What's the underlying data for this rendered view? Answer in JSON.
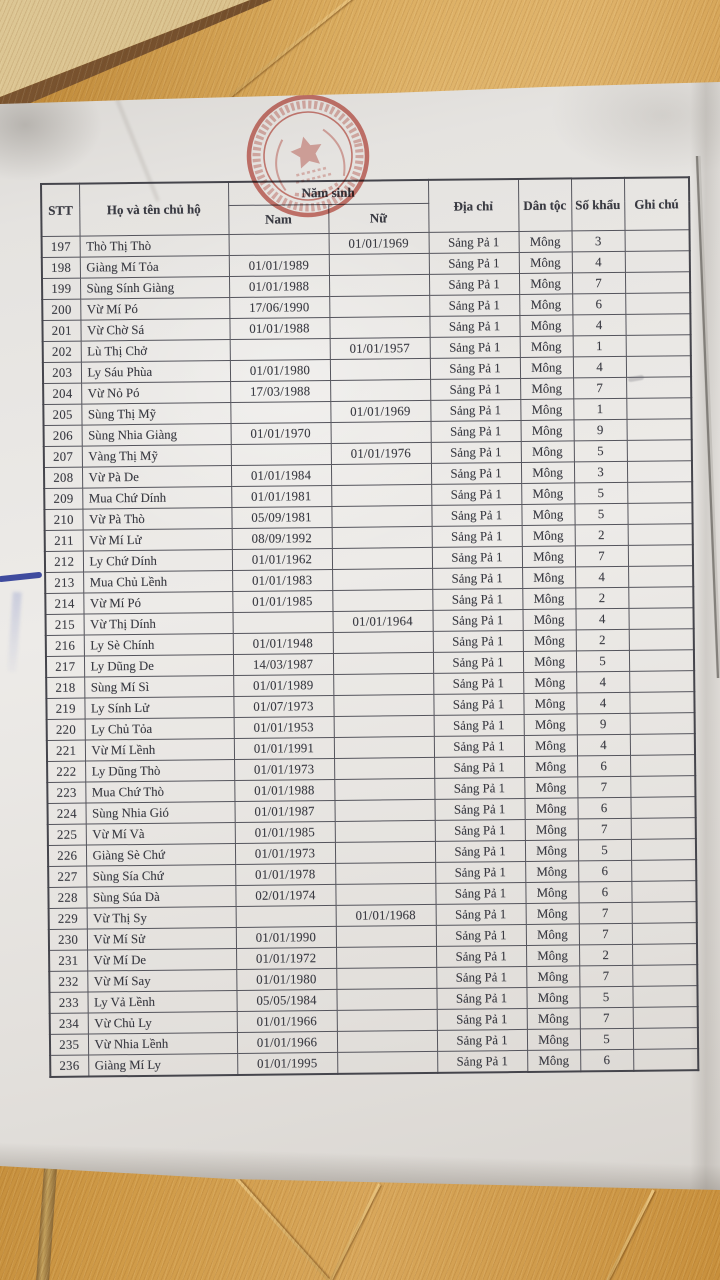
{
  "table": {
    "headers": {
      "stt": "STT",
      "name": "Họ và tên chủ hộ",
      "birth_year": "Năm sinh",
      "male": "Nam",
      "female": "Nữ",
      "address": "Địa chỉ",
      "ethnicity": "Dân tộc",
      "household_size": "Số khẩu",
      "notes": "Ghi chú"
    },
    "rows": [
      {
        "stt": "197",
        "name": "Thò Thị Thò",
        "nam": "",
        "nu": "01/01/1969",
        "address": "Sảng Pả 1",
        "ethnicity": "Mông",
        "sokhau": "3",
        "note": ""
      },
      {
        "stt": "198",
        "name": "Giàng Mí Tỏa",
        "nam": "01/01/1989",
        "nu": "",
        "address": "Sảng Pả 1",
        "ethnicity": "Mông",
        "sokhau": "4",
        "note": ""
      },
      {
        "stt": "199",
        "name": "Sùng Sính Giàng",
        "nam": "01/01/1988",
        "nu": "",
        "address": "Sảng Pả 1",
        "ethnicity": "Mông",
        "sokhau": "7",
        "note": ""
      },
      {
        "stt": "200",
        "name": "Vừ Mí Pó",
        "nam": "17/06/1990",
        "nu": "",
        "address": "Sảng Pả 1",
        "ethnicity": "Mông",
        "sokhau": "6",
        "note": ""
      },
      {
        "stt": "201",
        "name": "Vừ Chờ Sá",
        "nam": "01/01/1988",
        "nu": "",
        "address": "Sảng Pả 1",
        "ethnicity": "Mông",
        "sokhau": "4",
        "note": ""
      },
      {
        "stt": "202",
        "name": "Lù Thị Chở",
        "nam": "",
        "nu": "01/01/1957",
        "address": "Sảng Pả 1",
        "ethnicity": "Mông",
        "sokhau": "1",
        "note": ""
      },
      {
        "stt": "203",
        "name": "Ly Sáu Phùa",
        "nam": "01/01/1980",
        "nu": "",
        "address": "Sảng Pả 1",
        "ethnicity": "Mông",
        "sokhau": "4",
        "note": ""
      },
      {
        "stt": "204",
        "name": "Vừ Nỏ Pó",
        "nam": "17/03/1988",
        "nu": "",
        "address": "Sảng Pả 1",
        "ethnicity": "Mông",
        "sokhau": "7",
        "note": ""
      },
      {
        "stt": "205",
        "name": "Sùng Thị Mỹ",
        "nam": "",
        "nu": "01/01/1969",
        "address": "Sảng Pả 1",
        "ethnicity": "Mông",
        "sokhau": "1",
        "note": ""
      },
      {
        "stt": "206",
        "name": "Sùng Nhia Giàng",
        "nam": "01/01/1970",
        "nu": "",
        "address": "Sảng Pả 1",
        "ethnicity": "Mông",
        "sokhau": "9",
        "note": ""
      },
      {
        "stt": "207",
        "name": "Vàng Thị Mỹ",
        "nam": "",
        "nu": "01/01/1976",
        "address": "Sảng Pả 1",
        "ethnicity": "Mông",
        "sokhau": "5",
        "note": ""
      },
      {
        "stt": "208",
        "name": "Vừ Pà De",
        "nam": "01/01/1984",
        "nu": "",
        "address": "Sảng Pả 1",
        "ethnicity": "Mông",
        "sokhau": "3",
        "note": ""
      },
      {
        "stt": "209",
        "name": "Mua Chứ Dính",
        "nam": "01/01/1981",
        "nu": "",
        "address": "Sảng Pả 1",
        "ethnicity": "Mông",
        "sokhau": "5",
        "note": ""
      },
      {
        "stt": "210",
        "name": "Vừ Pà Thò",
        "nam": "05/09/1981",
        "nu": "",
        "address": "Sảng Pả 1",
        "ethnicity": "Mông",
        "sokhau": "5",
        "note": ""
      },
      {
        "stt": "211",
        "name": "Vừ Mí Lử",
        "nam": "08/09/1992",
        "nu": "",
        "address": "Sảng Pả 1",
        "ethnicity": "Mông",
        "sokhau": "2",
        "note": ""
      },
      {
        "stt": "212",
        "name": "Ly Chứ Dính",
        "nam": "01/01/1962",
        "nu": "",
        "address": "Sảng Pả 1",
        "ethnicity": "Mông",
        "sokhau": "7",
        "note": ""
      },
      {
        "stt": "213",
        "name": "Mua Chủ Lềnh",
        "nam": "01/01/1983",
        "nu": "",
        "address": "Sảng Pả 1",
        "ethnicity": "Mông",
        "sokhau": "4",
        "note": ""
      },
      {
        "stt": "214",
        "name": "Vừ Mí Pó",
        "nam": "01/01/1985",
        "nu": "",
        "address": "Sảng Pả 1",
        "ethnicity": "Mông",
        "sokhau": "2",
        "note": ""
      },
      {
        "stt": "215",
        "name": "Vừ Thị Dính",
        "nam": "",
        "nu": "01/01/1964",
        "address": "Sảng Pả 1",
        "ethnicity": "Mông",
        "sokhau": "4",
        "note": ""
      },
      {
        "stt": "216",
        "name": "Ly Sè Chính",
        "nam": "01/01/1948",
        "nu": "",
        "address": "Sảng Pả 1",
        "ethnicity": "Mông",
        "sokhau": "2",
        "note": ""
      },
      {
        "stt": "217",
        "name": "Ly Dũng De",
        "nam": "14/03/1987",
        "nu": "",
        "address": "Sảng Pả 1",
        "ethnicity": "Mông",
        "sokhau": "5",
        "note": ""
      },
      {
        "stt": "218",
        "name": "Sùng Mí Sì",
        "nam": "01/01/1989",
        "nu": "",
        "address": "Sảng Pả 1",
        "ethnicity": "Mông",
        "sokhau": "4",
        "note": ""
      },
      {
        "stt": "219",
        "name": "Ly Sính Lử",
        "nam": "01/07/1973",
        "nu": "",
        "address": "Sảng Pả 1",
        "ethnicity": "Mông",
        "sokhau": "4",
        "note": ""
      },
      {
        "stt": "220",
        "name": "Ly Chủ Tỏa",
        "nam": "01/01/1953",
        "nu": "",
        "address": "Sảng Pả 1",
        "ethnicity": "Mông",
        "sokhau": "9",
        "note": ""
      },
      {
        "stt": "221",
        "name": "Vừ Mí Lềnh",
        "nam": "01/01/1991",
        "nu": "",
        "address": "Sảng Pả 1",
        "ethnicity": "Mông",
        "sokhau": "4",
        "note": ""
      },
      {
        "stt": "222",
        "name": "Ly Dũng Thò",
        "nam": "01/01/1973",
        "nu": "",
        "address": "Sảng Pả 1",
        "ethnicity": "Mông",
        "sokhau": "6",
        "note": ""
      },
      {
        "stt": "223",
        "name": "Mua Chứ Thò",
        "nam": "01/01/1988",
        "nu": "",
        "address": "Sảng Pả 1",
        "ethnicity": "Mông",
        "sokhau": "7",
        "note": ""
      },
      {
        "stt": "224",
        "name": "Sùng Nhia Gió",
        "nam": "01/01/1987",
        "nu": "",
        "address": "Sảng Pả 1",
        "ethnicity": "Mông",
        "sokhau": "6",
        "note": ""
      },
      {
        "stt": "225",
        "name": "Vừ Mí Và",
        "nam": "01/01/1985",
        "nu": "",
        "address": "Sảng Pả 1",
        "ethnicity": "Mông",
        "sokhau": "7",
        "note": ""
      },
      {
        "stt": "226",
        "name": "Giàng Sè Chứ",
        "nam": "01/01/1973",
        "nu": "",
        "address": "Sảng Pả 1",
        "ethnicity": "Mông",
        "sokhau": "5",
        "note": ""
      },
      {
        "stt": "227",
        "name": "Sùng Sía Chứ",
        "nam": "01/01/1978",
        "nu": "",
        "address": "Sảng Pả 1",
        "ethnicity": "Mông",
        "sokhau": "6",
        "note": ""
      },
      {
        "stt": "228",
        "name": "Sùng Súa Dà",
        "nam": "02/01/1974",
        "nu": "",
        "address": "Sảng Pả 1",
        "ethnicity": "Mông",
        "sokhau": "6",
        "note": ""
      },
      {
        "stt": "229",
        "name": "Vừ Thị Sy",
        "nam": "",
        "nu": "01/01/1968",
        "address": "Sảng Pả 1",
        "ethnicity": "Mông",
        "sokhau": "7",
        "note": ""
      },
      {
        "stt": "230",
        "name": "Vừ Mí Sử",
        "nam": "01/01/1990",
        "nu": "",
        "address": "Sảng Pả 1",
        "ethnicity": "Mông",
        "sokhau": "7",
        "note": ""
      },
      {
        "stt": "231",
        "name": "Vừ Mí De",
        "nam": "01/01/1972",
        "nu": "",
        "address": "Sảng Pả 1",
        "ethnicity": "Mông",
        "sokhau": "2",
        "note": ""
      },
      {
        "stt": "232",
        "name": "Vừ Mí Say",
        "nam": "01/01/1980",
        "nu": "",
        "address": "Sảng Pả 1",
        "ethnicity": "Mông",
        "sokhau": "7",
        "note": ""
      },
      {
        "stt": "233",
        "name": "Ly Vả Lềnh",
        "nam": "05/05/1984",
        "nu": "",
        "address": "Sảng Pả 1",
        "ethnicity": "Mông",
        "sokhau": "5",
        "note": ""
      },
      {
        "stt": "234",
        "name": "Vừ Chủ Ly",
        "nam": "01/01/1966",
        "nu": "",
        "address": "Sảng Pả 1",
        "ethnicity": "Mông",
        "sokhau": "7",
        "note": ""
      },
      {
        "stt": "235",
        "name": "Vừ Nhia Lềnh",
        "nam": "01/01/1966",
        "nu": "",
        "address": "Sảng Pả 1",
        "ethnicity": "Mông",
        "sokhau": "5",
        "note": ""
      },
      {
        "stt": "236",
        "name": "Giàng Mí Ly",
        "nam": "01/01/1995",
        "nu": "",
        "address": "Sảng Pả 1",
        "ethnicity": "Mông",
        "sokhau": "6",
        "note": ""
      }
    ]
  },
  "stamp": {
    "color": "#bf4438"
  },
  "annotations": {
    "pen_color": "#2c3a96"
  }
}
